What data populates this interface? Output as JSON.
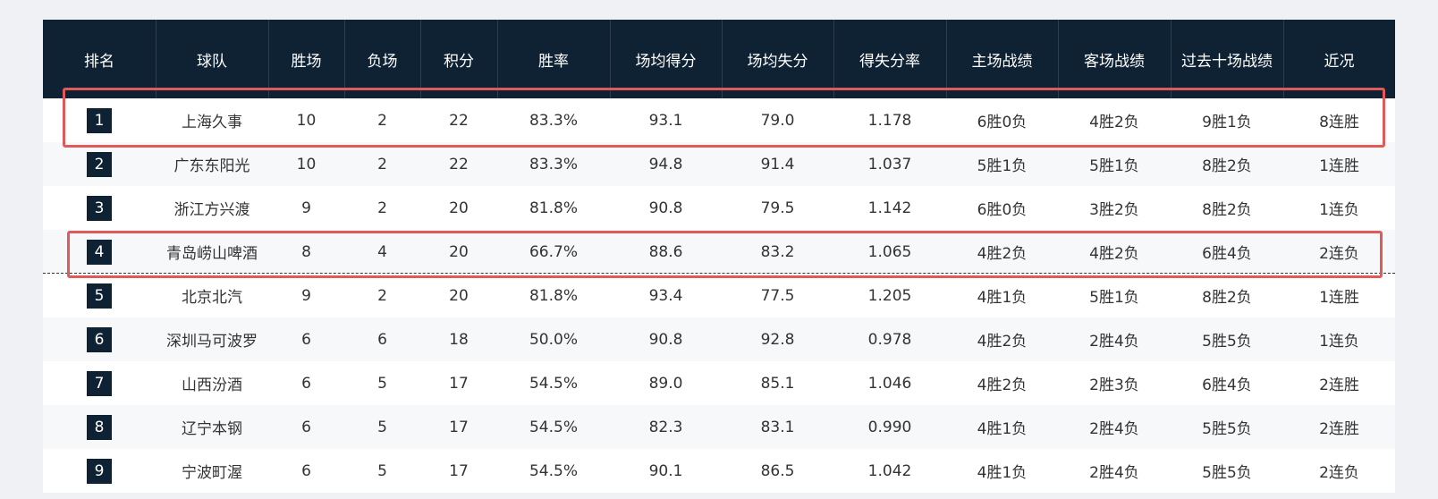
{
  "table": {
    "header": [
      "排名",
      "球队",
      "胜场",
      "负场",
      "积分",
      "胜率",
      "场均得分",
      "场均失分",
      "得失分率",
      "主场战绩",
      "客场战绩",
      "过去十场战绩",
      "近况"
    ],
    "rows": [
      [
        "1",
        "上海久事",
        "10",
        "2",
        "22",
        "83.3%",
        "93.1",
        "79.0",
        "1.178",
        "6胜0负",
        "4胜2负",
        "9胜1负",
        "8连胜"
      ],
      [
        "2",
        "广东东阳光",
        "10",
        "2",
        "22",
        "83.3%",
        "94.8",
        "91.4",
        "1.037",
        "5胜1负",
        "5胜1负",
        "8胜2负",
        "1连胜"
      ],
      [
        "3",
        "浙江方兴渡",
        "9",
        "2",
        "20",
        "81.8%",
        "90.8",
        "79.5",
        "1.142",
        "6胜0负",
        "3胜2负",
        "8胜2负",
        "1连负"
      ],
      [
        "4",
        "青岛崂山啤酒",
        "8",
        "4",
        "20",
        "66.7%",
        "88.6",
        "83.2",
        "1.065",
        "4胜2负",
        "4胜2负",
        "6胜4负",
        "2连负"
      ],
      [
        "5",
        "北京北汽",
        "9",
        "2",
        "20",
        "81.8%",
        "93.4",
        "77.5",
        "1.205",
        "4胜1负",
        "5胜1负",
        "8胜2负",
        "1连胜"
      ],
      [
        "6",
        "深圳马可波罗",
        "6",
        "6",
        "18",
        "50.0%",
        "90.8",
        "92.8",
        "0.978",
        "4胜2负",
        "2胜4负",
        "5胜5负",
        "1连负"
      ],
      [
        "7",
        "山西汾酒",
        "6",
        "5",
        "17",
        "54.5%",
        "89.0",
        "85.1",
        "1.046",
        "4胜2负",
        "2胜3负",
        "6胜4负",
        "2连胜"
      ],
      [
        "8",
        "辽宁本钢",
        "6",
        "5",
        "17",
        "54.5%",
        "82.3",
        "83.1",
        "0.990",
        "4胜1负",
        "2胜4负",
        "5胜5负",
        "2连胜"
      ],
      [
        "9",
        "宁波町渥",
        "6",
        "5",
        "17",
        "54.5%",
        "90.1",
        "86.5",
        "1.042",
        "4胜1负",
        "2胜4负",
        "5胜5负",
        "2连负"
      ]
    ]
  }
}
